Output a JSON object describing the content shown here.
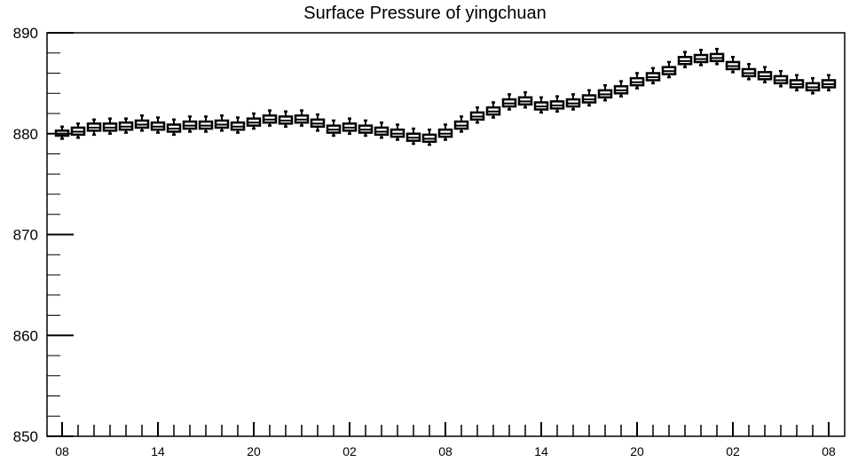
{
  "chart_data": {
    "type": "box",
    "title": "Surface Pressure of yingchuan",
    "xlabel": "",
    "ylabel": "",
    "ylim": [
      850,
      890
    ],
    "yticks": [
      "850",
      "860",
      "870",
      "880",
      "890"
    ],
    "xtick_labels": [
      "08",
      "14",
      "20",
      "02",
      "08",
      "14",
      "20",
      "02",
      "08"
    ],
    "xtick_every": 6,
    "box_median": [
      880.0,
      880.2,
      880.6,
      880.6,
      880.7,
      880.9,
      880.7,
      880.5,
      880.8,
      880.8,
      880.9,
      880.7,
      881.1,
      881.4,
      881.3,
      881.4,
      881.0,
      880.4,
      880.6,
      880.4,
      880.2,
      880.0,
      879.6,
      879.5,
      880.0,
      880.8,
      881.7,
      882.2,
      883.0,
      883.2,
      882.7,
      882.8,
      883.0,
      883.4,
      883.9,
      884.3,
      885.1,
      885.6,
      886.2,
      887.2,
      887.4,
      887.5,
      886.7,
      886.0,
      885.7,
      885.3,
      884.9,
      884.6,
      884.9
    ],
    "box_q1": [
      879.8,
      879.9,
      880.3,
      880.3,
      880.4,
      880.6,
      880.4,
      880.2,
      880.5,
      880.5,
      880.6,
      880.4,
      880.8,
      881.1,
      881.0,
      881.1,
      880.7,
      880.1,
      880.3,
      880.1,
      879.9,
      879.7,
      879.3,
      879.2,
      879.7,
      880.5,
      881.4,
      881.9,
      882.7,
      882.9,
      882.4,
      882.5,
      882.7,
      883.1,
      883.6,
      884.0,
      884.8,
      885.3,
      885.9,
      886.9,
      887.1,
      887.2,
      886.4,
      885.7,
      885.4,
      885.0,
      884.6,
      884.3,
      884.6
    ],
    "box_q3": [
      880.3,
      880.6,
      881.0,
      881.0,
      881.1,
      881.3,
      881.1,
      880.9,
      881.2,
      881.2,
      881.3,
      881.1,
      881.5,
      881.8,
      881.7,
      881.8,
      881.4,
      880.8,
      881.0,
      880.8,
      880.6,
      880.4,
      880.0,
      879.9,
      880.4,
      881.2,
      882.1,
      882.6,
      883.4,
      883.6,
      883.1,
      883.2,
      883.4,
      883.8,
      884.3,
      884.7,
      885.5,
      886.0,
      886.6,
      887.6,
      887.8,
      887.9,
      887.1,
      886.4,
      886.1,
      885.7,
      885.3,
      885.0,
      885.3
    ],
    "box_min": [
      879.5,
      879.6,
      879.9,
      880.0,
      880.1,
      880.3,
      880.1,
      879.9,
      880.2,
      880.2,
      880.3,
      880.1,
      880.5,
      880.8,
      880.7,
      880.8,
      880.3,
      879.8,
      880.0,
      879.8,
      879.6,
      879.4,
      879.0,
      878.9,
      879.4,
      880.2,
      881.1,
      881.6,
      882.4,
      882.6,
      882.1,
      882.2,
      882.4,
      882.8,
      883.3,
      883.7,
      884.5,
      885.0,
      885.6,
      886.6,
      886.8,
      886.9,
      886.1,
      885.4,
      885.1,
      884.7,
      884.3,
      884.0,
      884.3
    ],
    "box_max": [
      880.7,
      881.0,
      881.4,
      881.5,
      881.5,
      881.8,
      881.6,
      881.4,
      881.7,
      881.7,
      881.8,
      881.6,
      882.0,
      882.3,
      882.2,
      882.3,
      881.9,
      881.3,
      881.5,
      881.3,
      881.1,
      880.9,
      880.5,
      880.4,
      880.9,
      881.7,
      882.6,
      883.1,
      883.9,
      884.1,
      883.6,
      883.7,
      883.9,
      884.3,
      884.8,
      885.2,
      886.0,
      886.5,
      887.1,
      888.1,
      888.3,
      888.4,
      887.6,
      886.9,
      886.6,
      886.2,
      885.8,
      885.5,
      885.8
    ],
    "grid": false,
    "legend": "none"
  }
}
